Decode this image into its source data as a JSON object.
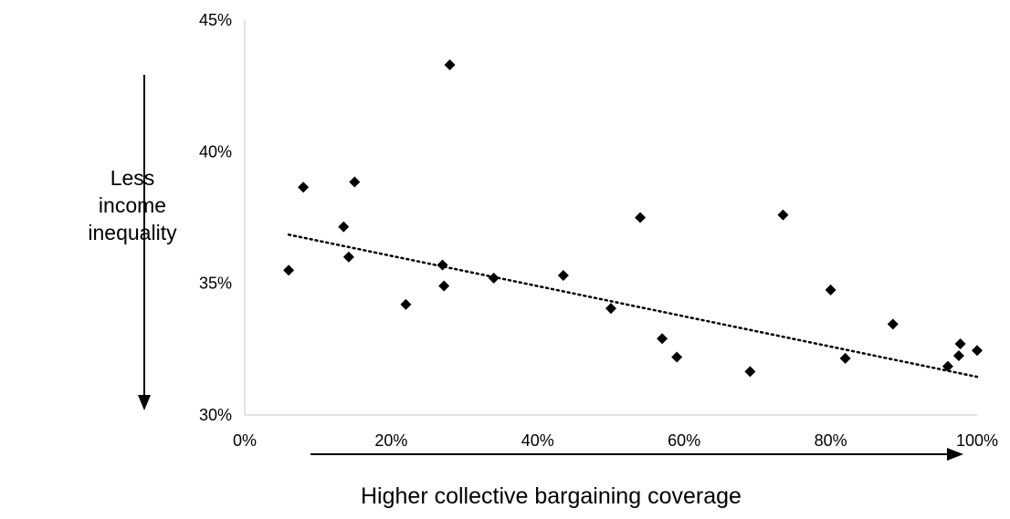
{
  "chart_data": {
    "type": "scatter",
    "x": [
      0.06,
      0.08,
      0.135,
      0.142,
      0.15,
      0.22,
      0.27,
      0.272,
      0.28,
      0.34,
      0.435,
      0.5,
      0.54,
      0.57,
      0.59,
      0.69,
      0.735,
      0.8,
      0.82,
      0.885,
      0.96,
      0.975,
      0.977,
      1.0
    ],
    "y": [
      0.355,
      0.3865,
      0.3715,
      0.36,
      0.3885,
      0.342,
      0.357,
      0.349,
      0.433,
      0.352,
      0.353,
      0.3405,
      0.375,
      0.329,
      0.322,
      0.3165,
      0.376,
      0.3475,
      0.3215,
      0.3345,
      0.3185,
      0.3225,
      0.327,
      0.3245
    ],
    "trendline": {
      "style": "dotted",
      "x": [
        0.06,
        1.0
      ],
      "y": [
        0.3685,
        0.3145
      ]
    },
    "xlim": [
      0,
      1
    ],
    "ylim": [
      0.3,
      0.45
    ],
    "xticks": [
      "0%",
      "20%",
      "40%",
      "60%",
      "80%",
      "100%"
    ],
    "yticks": [
      "30%",
      "35%",
      "40%",
      "45%"
    ],
    "xlabel": "Higher collective bargaining coverage",
    "ylabel": [
      "Less",
      "income",
      "inequality"
    ],
    "grid": false,
    "marker": "diamond",
    "colors": {
      "marker": "#000000",
      "axis": "#d9d9d9",
      "text": "#000000"
    }
  }
}
